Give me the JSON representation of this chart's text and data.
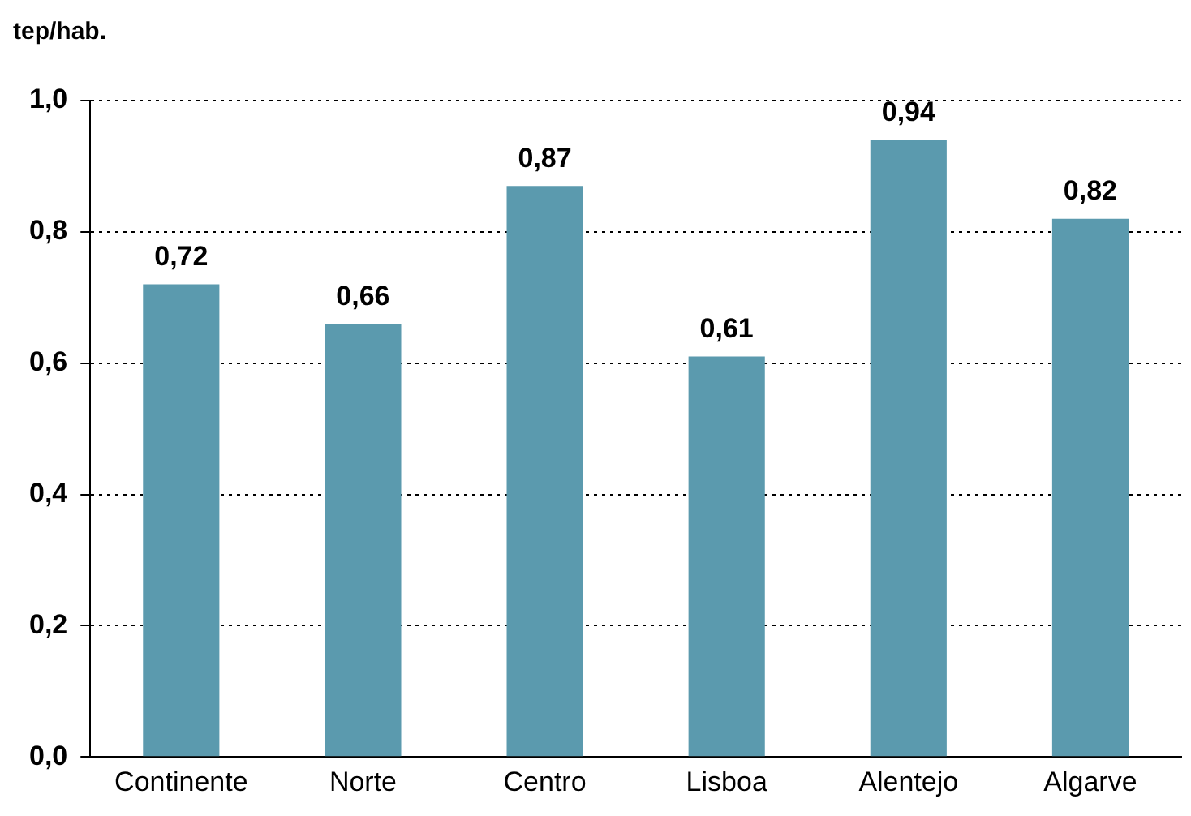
{
  "chart_data": {
    "type": "bar",
    "ylabel": "tep/hab.",
    "categories": [
      "Continente",
      "Norte",
      "Centro",
      "Lisboa",
      "Alentejo",
      "Algarve"
    ],
    "values": [
      0.72,
      0.66,
      0.87,
      0.61,
      0.94,
      0.82
    ],
    "value_labels": [
      "0,72",
      "0,66",
      "0,87",
      "0,61",
      "0,94",
      "0,82"
    ],
    "color": "#5b9aae",
    "ylim": [
      0,
      1
    ],
    "yticks": [
      {
        "value": 0,
        "label": "0,0"
      },
      {
        "value": 0.2,
        "label": "0,2"
      },
      {
        "value": 0.4,
        "label": "0,4"
      },
      {
        "value": 0.6,
        "label": "0,6"
      },
      {
        "value": 0.8,
        "label": "0,8"
      },
      {
        "value": 1,
        "label": "1,0"
      }
    ],
    "grid": "y",
    "legend": false
  }
}
